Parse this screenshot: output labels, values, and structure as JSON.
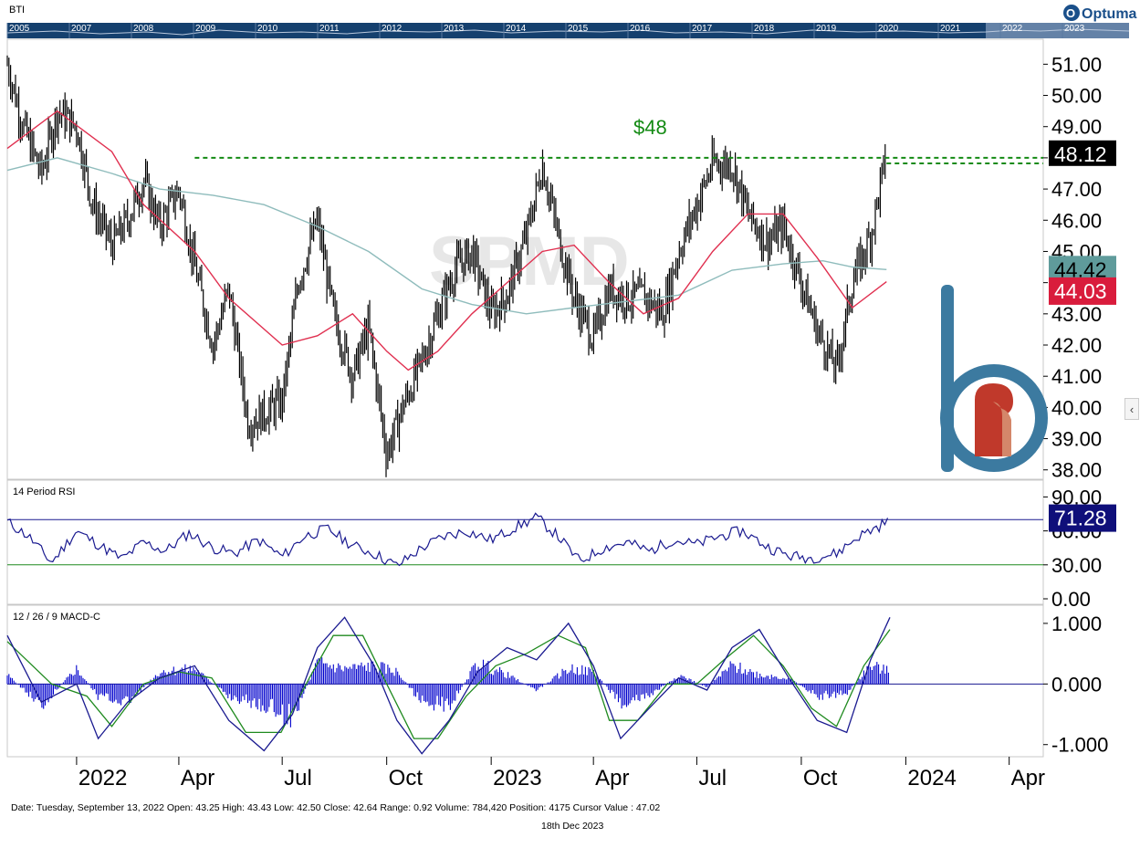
{
  "symbol": "BTI",
  "brand": "Optuma",
  "overview": {
    "years": [
      "2005",
      "2007",
      "2008",
      "2009",
      "2010",
      "2011",
      "2012",
      "2013",
      "2014",
      "2015",
      "2016",
      "2017",
      "2018",
      "2019",
      "2020",
      "2021",
      "2022",
      "2023"
    ]
  },
  "watermark": "SPMD",
  "annotation": "$48",
  "price_labels": {
    "last": "48.12",
    "ma_slow": "44.42",
    "ma_fast": "44.03"
  },
  "rsi": {
    "title": "14 Period RSI",
    "last_label": "71.28"
  },
  "macd": {
    "title": "12 / 26 / 9 MACD-C"
  },
  "date_ticks": [
    "2022",
    "Apr",
    "Jul",
    "Oct",
    "2023",
    "Apr",
    "Jul",
    "Oct",
    "2024",
    "Apr"
  ],
  "status_line": "Date: Tuesday, September 13, 2022 Open: 43.25 High: 43.43 Low: 42.50 Close: 42.64 Range: 0.92 Volume: 784,420 Position: 4175 Cursor Value : 47.02",
  "footer_date": "18th Dec 2023",
  "colors": {
    "price": "#000000",
    "ma_fast": "#e03050",
    "ma_slow": "#8fbcbc",
    "resistance": "#138a13",
    "rsi_line": "#1a1a90",
    "macd_line": "#1a1a90",
    "macd_signal": "#1f8a1f",
    "macd_hist": "#0000cc",
    "label_last": "#000000",
    "label_slow": "#5f9b9b",
    "label_fast": "#d91c3c",
    "label_rsi": "#0f0f7a",
    "overview_bg": "#15406e",
    "logo": "#3c7aa0",
    "logo_accent": "#c0392b"
  },
  "chart_data": [
    {
      "type": "line",
      "name": "price",
      "title": "BTI",
      "x_range": [
        "2021-11-01",
        "2024-05-01"
      ],
      "ylim": [
        37.7,
        51.8
      ],
      "y_ticks": [
        38,
        39,
        40,
        41,
        42,
        43,
        44,
        45,
        46,
        47,
        48,
        49,
        50,
        51
      ],
      "y_tick_labels": [
        "38.00",
        "39.00",
        "40.00",
        "41.00",
        "42.00",
        "43.00",
        "44.00",
        "45.00",
        "46.00",
        "47.00",
        "48.00",
        "49.00",
        "50.00",
        "51.00"
      ],
      "x_tick_labels": [
        "2022",
        "Apr",
        "Jul",
        "Oct",
        "2023",
        "Apr",
        "Jul",
        "Oct",
        "2024",
        "Apr"
      ],
      "x_tick_dates": [
        "2022-01-01",
        "2022-04-01",
        "2022-07-01",
        "2022-10-01",
        "2023-01-01",
        "2023-04-01",
        "2023-07-01",
        "2023-10-01",
        "2024-01-01",
        "2024-04-01"
      ],
      "series": [
        {
          "key": "close",
          "x": [
            "2021-11-01",
            "2021-11-15",
            "2021-12-01",
            "2021-12-15",
            "2022-01-01",
            "2022-01-15",
            "2022-02-01",
            "2022-02-15",
            "2022-03-01",
            "2022-03-15",
            "2022-04-01",
            "2022-04-15",
            "2022-05-01",
            "2022-05-15",
            "2022-06-01",
            "2022-06-15",
            "2022-07-01",
            "2022-07-15",
            "2022-08-01",
            "2022-08-15",
            "2022-09-01",
            "2022-09-15",
            "2022-10-01",
            "2022-10-15",
            "2022-11-01",
            "2022-11-15",
            "2022-12-01",
            "2022-12-15",
            "2023-01-01",
            "2023-01-15",
            "2023-02-01",
            "2023-02-15",
            "2023-03-01",
            "2023-03-15",
            "2023-04-01",
            "2023-04-15",
            "2023-05-01",
            "2023-05-15",
            "2023-06-01",
            "2023-06-15",
            "2023-07-01",
            "2023-07-15",
            "2023-08-01",
            "2023-08-15",
            "2023-09-01",
            "2023-09-15",
            "2023-10-01",
            "2023-10-15",
            "2023-11-01",
            "2023-11-15",
            "2023-12-01",
            "2023-12-15"
          ],
          "values": [
            51.0,
            49.0,
            47.5,
            49.5,
            49.0,
            46.5,
            45.2,
            46.0,
            47.3,
            45.8,
            47.0,
            44.5,
            42.0,
            43.8,
            39.5,
            39.8,
            40.2,
            44.0,
            46.0,
            43.0,
            41.0,
            42.6,
            38.5,
            40.0,
            41.5,
            43.0,
            44.5,
            45.0,
            43.0,
            43.6,
            45.5,
            47.8,
            45.5,
            43.5,
            42.2,
            43.8,
            43.5,
            43.6,
            43.0,
            45.0,
            46.5,
            47.8,
            47.8,
            46.2,
            45.3,
            45.8,
            44.0,
            42.5,
            41.2,
            44.0,
            45.5,
            48.12
          ]
        },
        {
          "key": "ma_fast",
          "x": [
            "2021-11-01",
            "2021-12-15",
            "2022-02-01",
            "2022-03-01",
            "2022-04-15",
            "2022-05-15",
            "2022-07-01",
            "2022-08-01",
            "2022-09-01",
            "2022-10-01",
            "2022-10-20",
            "2022-11-15",
            "2022-12-15",
            "2023-01-15",
            "2023-02-15",
            "2023-03-15",
            "2023-04-15",
            "2023-05-15",
            "2023-06-15",
            "2023-07-15",
            "2023-08-15",
            "2023-09-15",
            "2023-10-15",
            "2023-11-15",
            "2023-12-15"
          ],
          "values": [
            48.3,
            49.5,
            48.2,
            46.5,
            45.0,
            43.5,
            42.0,
            42.3,
            43.0,
            41.8,
            41.2,
            41.8,
            43.0,
            44.0,
            45.0,
            45.2,
            44.0,
            43.0,
            43.5,
            45.0,
            46.2,
            46.2,
            44.8,
            43.2,
            44.03
          ]
        },
        {
          "key": "ma_slow",
          "x": [
            "2021-11-01",
            "2021-12-15",
            "2022-02-01",
            "2022-03-15",
            "2022-05-01",
            "2022-06-15",
            "2022-08-01",
            "2022-09-15",
            "2022-11-01",
            "2022-12-15",
            "2023-02-01",
            "2023-03-15",
            "2023-05-01",
            "2023-06-15",
            "2023-08-01",
            "2023-09-15",
            "2023-10-20",
            "2023-11-15",
            "2023-12-15"
          ],
          "values": [
            47.6,
            48.0,
            47.5,
            47.0,
            46.8,
            46.5,
            45.8,
            45.0,
            43.8,
            43.3,
            43.0,
            43.2,
            43.4,
            43.6,
            44.4,
            44.6,
            44.7,
            44.5,
            44.42
          ]
        }
      ],
      "annotations": [
        {
          "text": "$48",
          "y": 48.0
        }
      ]
    },
    {
      "type": "line",
      "name": "rsi",
      "title": "14 Period RSI",
      "ylim": [
        0,
        100
      ],
      "y_tick_labels": [
        "90.00",
        "60.00",
        "30.00",
        "0.00"
      ],
      "y_ticks": [
        90,
        60,
        30,
        0
      ],
      "reference_lines": [
        70,
        30
      ],
      "series": [
        {
          "key": "rsi",
          "x": [
            "2021-11-01",
            "2021-11-20",
            "2021-12-10",
            "2022-01-01",
            "2022-01-20",
            "2022-02-10",
            "2022-03-01",
            "2022-03-20",
            "2022-04-10",
            "2022-05-01",
            "2022-05-20",
            "2022-06-10",
            "2022-07-01",
            "2022-07-20",
            "2022-08-10",
            "2022-09-01",
            "2022-09-20",
            "2022-10-10",
            "2022-11-01",
            "2022-11-20",
            "2022-12-10",
            "2023-01-01",
            "2023-01-20",
            "2023-02-10",
            "2023-03-01",
            "2023-03-20",
            "2023-04-10",
            "2023-05-01",
            "2023-05-20",
            "2023-06-10",
            "2023-07-01",
            "2023-07-20",
            "2023-08-10",
            "2023-09-01",
            "2023-09-20",
            "2023-10-10",
            "2023-11-01",
            "2023-11-20",
            "2023-12-10",
            "2023-12-18"
          ],
          "values": [
            68,
            55,
            32,
            60,
            48,
            35,
            50,
            42,
            58,
            45,
            40,
            52,
            37,
            55,
            62,
            47,
            40,
            29,
            45,
            55,
            60,
            52,
            62,
            72,
            55,
            33,
            45,
            50,
            42,
            52,
            48,
            55,
            60,
            46,
            38,
            36,
            40,
            55,
            65,
            71.28
          ]
        }
      ]
    },
    {
      "type": "line",
      "name": "macd",
      "title": "12 / 26 / 9 MACD-C",
      "ylim": [
        -1.2,
        1.3
      ],
      "y_ticks": [
        1.0,
        0.0,
        -1.0
      ],
      "y_tick_labels": [
        "1.000",
        "0.000",
        "-1.000"
      ],
      "series": [
        {
          "key": "macd",
          "x": [
            "2021-11-01",
            "2021-12-01",
            "2022-01-01",
            "2022-01-20",
            "2022-02-15",
            "2022-03-15",
            "2022-04-15",
            "2022-05-15",
            "2022-06-15",
            "2022-07-10",
            "2022-08-01",
            "2022-08-25",
            "2022-09-20",
            "2022-10-10",
            "2022-11-01",
            "2022-11-25",
            "2022-12-20",
            "2023-01-15",
            "2023-02-10",
            "2023-03-10",
            "2023-04-01",
            "2023-04-25",
            "2023-05-20",
            "2023-06-15",
            "2023-07-10",
            "2023-08-01",
            "2023-08-25",
            "2023-09-20",
            "2023-10-15",
            "2023-11-10",
            "2023-12-01",
            "2023-12-18"
          ],
          "values": [
            0.8,
            -0.3,
            0.0,
            -0.9,
            -0.3,
            0.1,
            0.3,
            -0.6,
            -1.1,
            -0.5,
            0.6,
            1.1,
            0.3,
            -0.6,
            -1.15,
            -0.6,
            0.2,
            0.6,
            0.4,
            1.0,
            0.3,
            -0.9,
            -0.4,
            0.1,
            -0.1,
            0.6,
            0.9,
            0.1,
            -0.6,
            -0.8,
            0.4,
            1.1
          ]
        },
        {
          "key": "signal",
          "x": [
            "2021-11-01",
            "2021-12-10",
            "2022-01-10",
            "2022-02-01",
            "2022-03-01",
            "2022-04-01",
            "2022-04-30",
            "2022-05-30",
            "2022-06-30",
            "2022-07-25",
            "2022-08-15",
            "2022-09-10",
            "2022-10-01",
            "2022-10-25",
            "2022-11-15",
            "2022-12-10",
            "2023-01-05",
            "2023-02-01",
            "2023-03-01",
            "2023-03-25",
            "2023-04-15",
            "2023-05-10",
            "2023-06-05",
            "2023-07-01",
            "2023-07-25",
            "2023-08-20",
            "2023-09-15",
            "2023-10-10",
            "2023-11-01",
            "2023-11-25",
            "2023-12-18"
          ],
          "values": [
            0.7,
            0.0,
            -0.2,
            -0.7,
            0.0,
            0.2,
            0.1,
            -0.8,
            -0.8,
            0.1,
            0.8,
            0.8,
            0.0,
            -0.9,
            -0.9,
            -0.2,
            0.3,
            0.5,
            0.8,
            0.6,
            -0.6,
            -0.6,
            0.0,
            0.0,
            0.4,
            0.8,
            0.3,
            -0.4,
            -0.7,
            0.3,
            0.9
          ]
        },
        {
          "key": "histogram",
          "x": [
            "2021-11-01",
            "2021-12-01",
            "2022-01-01",
            "2022-01-20",
            "2022-02-15",
            "2022-03-15",
            "2022-04-15",
            "2022-05-15",
            "2022-06-15",
            "2022-07-10",
            "2022-08-01",
            "2022-08-25",
            "2022-09-20",
            "2022-10-10",
            "2022-11-01",
            "2022-11-25",
            "2022-12-20",
            "2023-01-15",
            "2023-02-10",
            "2023-03-10",
            "2023-04-01",
            "2023-04-25",
            "2023-05-20",
            "2023-06-15",
            "2023-07-10",
            "2023-08-01",
            "2023-08-25",
            "2023-09-20",
            "2023-10-15",
            "2023-11-10",
            "2023-12-01",
            "2023-12-18"
          ],
          "values": [
            0.15,
            -0.35,
            0.25,
            -0.2,
            -0.3,
            0.2,
            0.25,
            -0.2,
            -0.35,
            -0.55,
            0.35,
            0.25,
            0.3,
            0.2,
            -0.3,
            -0.35,
            0.35,
            0.15,
            -0.1,
            0.25,
            0.2,
            -0.3,
            -0.2,
            0.15,
            -0.05,
            0.3,
            0.15,
            0.1,
            -0.2,
            -0.15,
            0.3,
            0.2
          ]
        }
      ]
    }
  ]
}
